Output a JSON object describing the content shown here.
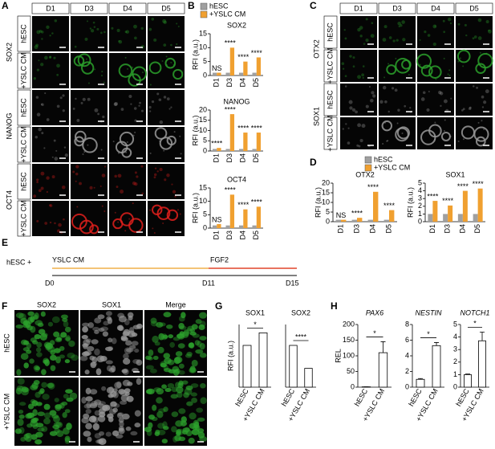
{
  "panel_labels": [
    "A",
    "B",
    "C",
    "D",
    "E",
    "F",
    "G",
    "H"
  ],
  "panel_A": {
    "days": [
      "D1",
      "D3",
      "D4",
      "D5"
    ],
    "conditions": [
      "hESC",
      "+YSLC CM"
    ],
    "markers": [
      {
        "name": "SOX2",
        "color": "#2ca02c"
      },
      {
        "name": "NANOG",
        "color": "#9a9a9a"
      },
      {
        "name": "OCT4",
        "color": "#e0201c"
      }
    ]
  },
  "panel_C": {
    "days": [
      "D1",
      "D3",
      "D4",
      "D5"
    ],
    "conditions": [
      "hESC",
      "+YSLC CM"
    ],
    "markers": [
      {
        "name": "OTX2",
        "color": "#2ca02c"
      },
      {
        "name": "SOX1",
        "color": "#9a9a9a"
      }
    ]
  },
  "panel_E": {
    "start": "hESC +",
    "phase1": "YSLC CM",
    "phase1_color": "#f0b04a",
    "phase2": "FGF2",
    "phase2_color": "#e0452c",
    "timepoints": [
      "D0",
      "D11",
      "D15"
    ]
  },
  "panel_F": {
    "conditions": [
      "hESC",
      "+YSLC CM"
    ],
    "channels": [
      {
        "name": "SOX2",
        "color": "#2ca02c"
      },
      {
        "name": "SOX1",
        "color": "#9a9a9a"
      },
      {
        "name": "Merge",
        "color": "#000000"
      }
    ]
  },
  "chart_data": [
    {
      "type": "bar",
      "title": "SOX2",
      "ylabel": "RFI (a.u.)",
      "categories": [
        "D1",
        "D3",
        "D4",
        "D5"
      ],
      "ylim": [
        0,
        15
      ],
      "yticks": [
        0,
        5,
        10,
        15
      ],
      "series": [
        {
          "name": "hESC",
          "color": "#a0a0a0",
          "values": [
            1,
            1,
            1,
            1
          ]
        },
        {
          "name": "+YSLC CM",
          "color": "#f0a030",
          "values": [
            1,
            10,
            5,
            6.5
          ]
        }
      ],
      "sig": [
        "NS",
        "****",
        "****",
        "****"
      ]
    },
    {
      "type": "bar",
      "title": "NANOG",
      "ylabel": "RFI (a.u.)",
      "categories": [
        "D1",
        "D3",
        "D4",
        "D5"
      ],
      "ylim": [
        0,
        20
      ],
      "yticks": [
        0,
        5,
        10,
        15,
        20
      ],
      "series": [
        {
          "name": "hESC",
          "color": "#a0a0a0",
          "values": [
            1,
            1,
            1,
            1
          ]
        },
        {
          "name": "+YSLC CM",
          "color": "#f0a030",
          "values": [
            1.5,
            18,
            9,
            9
          ]
        }
      ],
      "sig": [
        "****",
        "****",
        "****",
        "****"
      ]
    },
    {
      "type": "bar",
      "title": "OCT4",
      "ylabel": "RFI (a.u.)",
      "categories": [
        "D1",
        "D3",
        "D4",
        "D5"
      ],
      "ylim": [
        0,
        15
      ],
      "yticks": [
        0,
        5,
        10,
        15
      ],
      "series": [
        {
          "name": "hESC",
          "color": "#a0a0a0",
          "values": [
            1,
            1,
            1,
            1
          ]
        },
        {
          "name": "+YSLC CM",
          "color": "#f0a030",
          "values": [
            1.5,
            12.5,
            7,
            8
          ]
        }
      ],
      "sig": [
        "NS",
        "****",
        "****",
        "****"
      ]
    },
    {
      "type": "bar",
      "title": "OTX2",
      "ylabel": "RFI (a.u.)",
      "categories": [
        "D1",
        "D3",
        "D4",
        "D5"
      ],
      "ylim": [
        0,
        20
      ],
      "yticks": [
        0,
        5,
        10,
        15,
        20
      ],
      "series": [
        {
          "name": "hESC",
          "color": "#a0a0a0",
          "values": [
            1,
            1,
            1,
            1
          ]
        },
        {
          "name": "+YSLC CM",
          "color": "#f0a030",
          "values": [
            1,
            2,
            15.5,
            6
          ]
        }
      ],
      "sig": [
        "NS",
        "****",
        "****",
        "****"
      ]
    },
    {
      "type": "bar",
      "title": "SOX1",
      "ylabel": "RFI (a.u.)",
      "categories": [
        "D1",
        "D3",
        "D4",
        "D5"
      ],
      "ylim": [
        0,
        5
      ],
      "yticks": [
        0,
        1,
        2,
        3,
        4,
        5
      ],
      "series": [
        {
          "name": "hESC",
          "color": "#a0a0a0",
          "values": [
            1,
            1,
            1,
            1
          ]
        },
        {
          "name": "+YSLC CM",
          "color": "#f0a030",
          "values": [
            2.7,
            2.1,
            4,
            4.3
          ]
        }
      ],
      "sig": [
        "****",
        "****",
        "****",
        "****"
      ]
    },
    {
      "type": "bar",
      "title": "SOX1",
      "ylabel": "RFI (a.u.)",
      "categories": [
        "hESC",
        "+YSLC CM"
      ],
      "ylim": [
        0,
        1.5
      ],
      "series": [
        {
          "color": "#ffffff",
          "values": [
            1,
            1.3
          ]
        }
      ],
      "sig": "*"
    },
    {
      "type": "bar",
      "title": "SOX2",
      "categories": [
        "hESC",
        "+YSLC CM"
      ],
      "ylim": [
        0,
        1.5
      ],
      "series": [
        {
          "color": "#ffffff",
          "values": [
            1,
            0.45
          ]
        }
      ],
      "sig": "****"
    },
    {
      "type": "bar",
      "title": "PAX6",
      "ylabel": "REL",
      "categories": [
        "hESC",
        "+YSLC CM"
      ],
      "ylim": [
        0,
        200
      ],
      "yticks": [
        0,
        50,
        100,
        150,
        200
      ],
      "series": [
        {
          "color": "#ffffff",
          "values": [
            1,
            110
          ],
          "errors": [
            0,
            35
          ]
        }
      ],
      "sig": "*"
    },
    {
      "type": "bar",
      "title": "NESTIN",
      "categories": [
        "hESC",
        "+YSLC CM"
      ],
      "ylim": [
        0,
        8
      ],
      "yticks": [
        0,
        2,
        4,
        6,
        8
      ],
      "series": [
        {
          "color": "#ffffff",
          "values": [
            1,
            5.3
          ],
          "errors": [
            0.1,
            0.4
          ]
        }
      ],
      "sig": "*"
    },
    {
      "type": "bar",
      "title": "NOTCH1",
      "categories": [
        "hESC",
        "+YSLC CM"
      ],
      "ylim": [
        0,
        5
      ],
      "yticks": [
        0,
        1,
        2,
        3,
        4,
        5
      ],
      "series": [
        {
          "color": "#ffffff",
          "values": [
            1,
            3.7
          ],
          "errors": [
            0.05,
            0.7
          ]
        }
      ],
      "sig": "*"
    }
  ]
}
